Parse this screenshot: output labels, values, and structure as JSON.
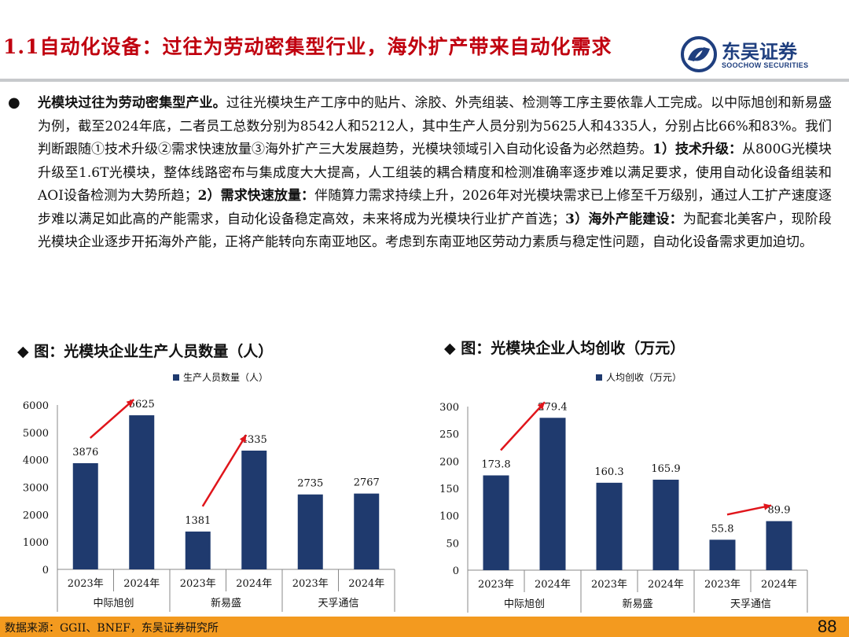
{
  "header": {
    "title": "1.1自动化设备：过往为劳动密集型行业，海外扩产带来自动化需求",
    "logo_cn": "东吴证券",
    "logo_en": "SOOCHOW SECURITIES"
  },
  "summary": {
    "bullet": "●",
    "lead_bold": "光模块过往为劳动密集型产业。",
    "text1": "过往光模块生产工序中的贴片、涂胶、外壳组装、检测等工序主要依靠人工完成。以中际旭创和新易盛为例，截至2024年底，二者员工总数分别为8542人和5212人，其中生产人员分别为5625人和4335人，分别占比66%和83%。我们判断跟随①技术升级②需求快速放量③海外扩产三大发展趋势，光模块领域引入自动化设备为必然趋势。",
    "point1_bold": "1）技术升级：",
    "text2": "从800G光模块升级至1.6T光模块，整体线路密布与集成度大大提高，人工组装的耦合精度和检测准确率逐步难以满足要求，使用自动化设备组装和AOI设备检测为大势所趋；",
    "point2_bold": "2）需求快速放量：",
    "text3": "伴随算力需求持续上升，2026年对光模块需求已上修至千万级别，通过人工扩产速度逐步难以满足如此高的产能需求，自动化设备稳定高效，未来将成为光模块行业扩产首选；",
    "point3_bold": "3）海外产能建设：",
    "text4": "为配套北美客户，现阶段光模块企业逐步开拓海外产能，正将产能转向东南亚地区。考虑到东南亚地区劳动力素质与稳定性问题，自动化设备需求更加迫切。"
  },
  "colors": {
    "title_red": "#c0000f",
    "bar_navy": "#1f3a6e",
    "arrow_red": "#e0151b",
    "footer_orange": "#f39a1f",
    "logo_blue": "#1f3f7f"
  },
  "chart_data": [
    {
      "type": "bar",
      "title": "◆ 图：光模块企业生产人员数量（人）",
      "legend": "生产人员数量（人）",
      "legend_position": "top-center",
      "grid": false,
      "ylim": [
        0,
        6000
      ],
      "yticks": [
        0,
        1000,
        2000,
        3000,
        4000,
        5000,
        6000
      ],
      "groups": [
        "中际旭创",
        "新易盛",
        "天孚通信"
      ],
      "categories": [
        "2023年",
        "2024年",
        "2023年",
        "2024年",
        "2023年",
        "2024年"
      ],
      "values": [
        3876,
        5625,
        1381,
        4335,
        2735,
        2767
      ],
      "labels": [
        "3876",
        "5625",
        "1381",
        "4335",
        "2735",
        "2767"
      ],
      "arrows": [
        [
          0,
          1
        ],
        [
          2,
          3
        ]
      ]
    },
    {
      "type": "bar",
      "title": "◆ 图：光模块企业人均创收（万元）",
      "legend": "人均创收（万元）",
      "legend_position": "top-center",
      "grid": false,
      "ylim": [
        0,
        300
      ],
      "yticks": [
        0,
        50,
        100,
        150,
        200,
        250,
        300
      ],
      "groups": [
        "中际旭创",
        "新易盛",
        "天孚通信"
      ],
      "categories": [
        "2023年",
        "2024年",
        "2023年",
        "2024年",
        "2023年",
        "2024年"
      ],
      "values": [
        173.8,
        279.4,
        160.3,
        165.9,
        55.8,
        89.9
      ],
      "labels": [
        "173.8",
        "279.4",
        "160.3",
        "165.9",
        "55.8",
        "89.9"
      ],
      "arrows": [
        [
          0,
          1
        ],
        [
          4,
          5
        ]
      ]
    }
  ],
  "footer": {
    "source": "数据来源：GGII、BNEF，东吴证券研究所",
    "page": "88"
  }
}
